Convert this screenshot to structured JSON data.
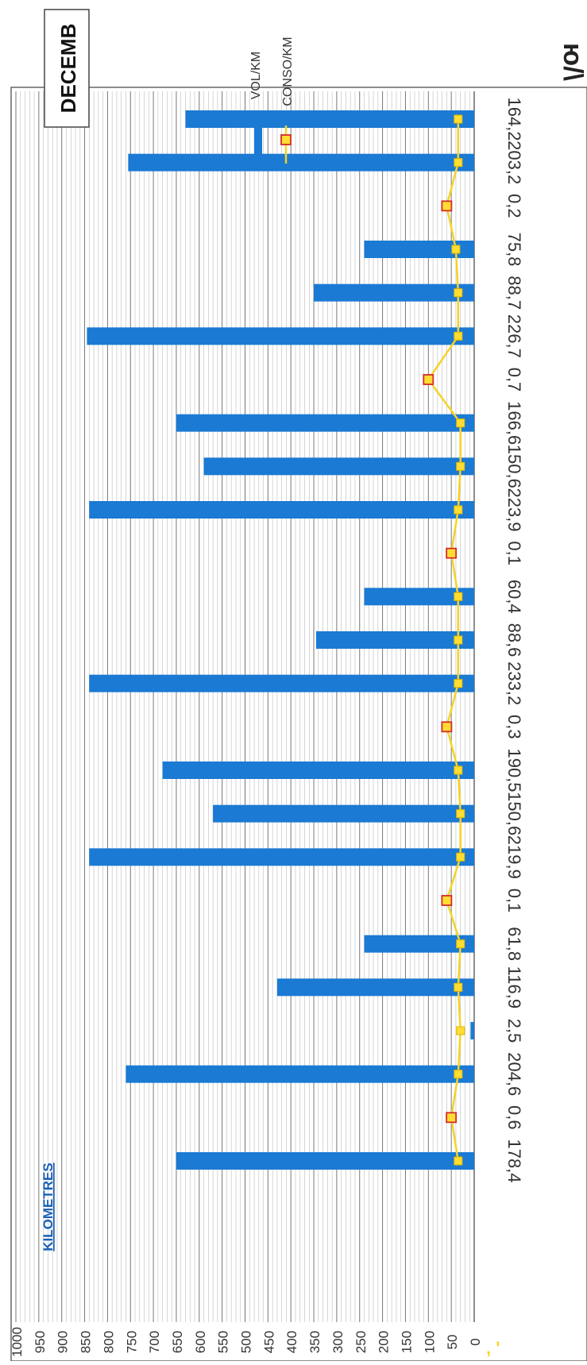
{
  "chart_data": {
    "type": "bar",
    "title": "DECEMB",
    "corner_text": "ю/\\",
    "axis_title": "KILOMETRES",
    "y_axis": {
      "ylim": [
        0,
        1000
      ],
      "ticks": [
        0,
        50,
        100,
        150,
        200,
        250,
        300,
        350,
        400,
        450,
        500,
        550,
        600,
        650,
        700,
        750,
        800,
        850,
        900,
        950,
        1000
      ],
      "minor_step": 10,
      "grid": true
    },
    "categories": [
      "178,4",
      "0,6",
      "204,6",
      "2,5",
      "116,9",
      "61,8",
      "0,1",
      "219,9",
      "150,6",
      "190,5",
      "0,3",
      "233,2",
      "88,6",
      "60,4",
      "0,1",
      "223,9",
      "150,6",
      "166,6",
      "0,7",
      "226,7",
      "88,7",
      "75,8",
      "0,2",
      "203,2",
      "164,2"
    ],
    "series": [
      {
        "name": "VOL/KM",
        "kind": "bar",
        "color": "#1a7ad4",
        "values": [
          650,
          null,
          760,
          8,
          430,
          240,
          null,
          840,
          570,
          680,
          null,
          840,
          345,
          240,
          null,
          840,
          590,
          650,
          null,
          845,
          350,
          240,
          null,
          755,
          630
        ]
      },
      {
        "name": "CONSO/KM",
        "kind": "line",
        "color": "#f5d327",
        "values": [
          35,
          50,
          35,
          30,
          35,
          30,
          60,
          30,
          30,
          35,
          60,
          35,
          35,
          35,
          50,
          35,
          30,
          30,
          100,
          35,
          35,
          40,
          60,
          35,
          35
        ]
      }
    ],
    "legend": {
      "placement": "top-right"
    },
    "footer_mark": ", '"
  }
}
